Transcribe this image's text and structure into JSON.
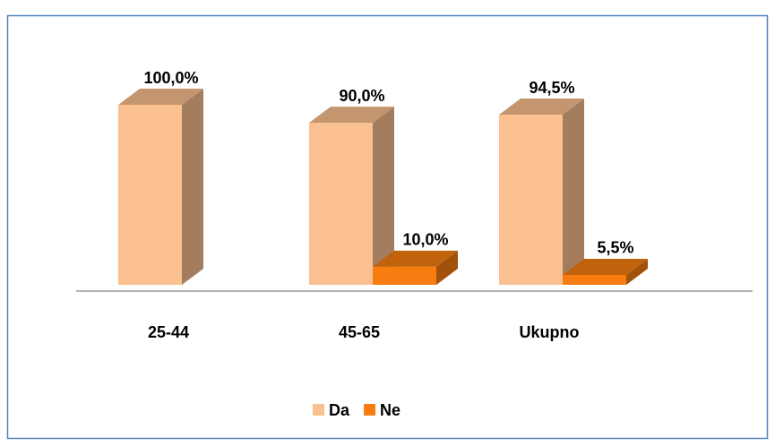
{
  "chart_data": {
    "type": "bar3d",
    "categories": [
      "25-44",
      "45-65",
      "Ukupno"
    ],
    "series": [
      {
        "name": "Da",
        "color": "#fac090",
        "values": [
          100,
          90,
          94.5
        ],
        "value_labels": [
          "100,0%",
          "90,0%",
          "94,5%"
        ]
      },
      {
        "name": "Ne",
        "color": "#f87d10",
        "values": [
          null,
          10,
          5.5
        ],
        "value_labels": [
          null,
          "10,0%",
          "5,5%"
        ]
      }
    ],
    "legend": "bottom"
  }
}
